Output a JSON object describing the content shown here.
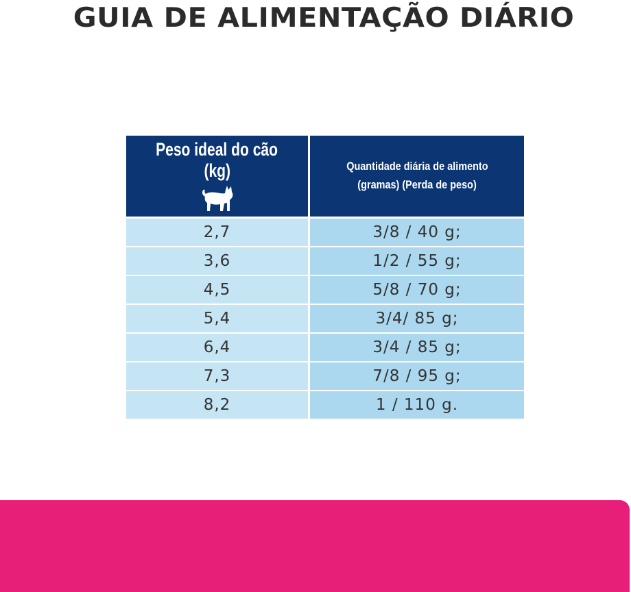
{
  "title": "GUIA DE ALIMENTAÇÃO DIÁRIO",
  "table": {
    "header": {
      "weight_line1": "Peso ideal do cão",
      "weight_line2": "(kg)",
      "weight_icon": "cat-icon",
      "amount_line1": "Quantidade diária de alimento",
      "amount_line2": "(gramas) (Perda de peso)"
    },
    "rows": [
      {
        "weight": "2,7",
        "amount": "3/8 / 40 g;"
      },
      {
        "weight": "3,6",
        "amount": "1/2 / 55 g;"
      },
      {
        "weight": "4,5",
        "amount": "5/8 / 70 g;"
      },
      {
        "weight": "5,4",
        "amount": "3/4/ 85 g;"
      },
      {
        "weight": "6,4",
        "amount": "3/4 / 85 g;"
      },
      {
        "weight": "7,3",
        "amount": "7/8 / 95 g;"
      },
      {
        "weight": "8,2",
        "amount": "1 / 110 g."
      }
    ]
  },
  "colors": {
    "header_bg": "#0b3673",
    "weight_cell_bg": "#c5e5f4",
    "amount_cell_bg": "#abd8ef",
    "band": "#e81f78",
    "title_text": "#2b2b2b"
  }
}
